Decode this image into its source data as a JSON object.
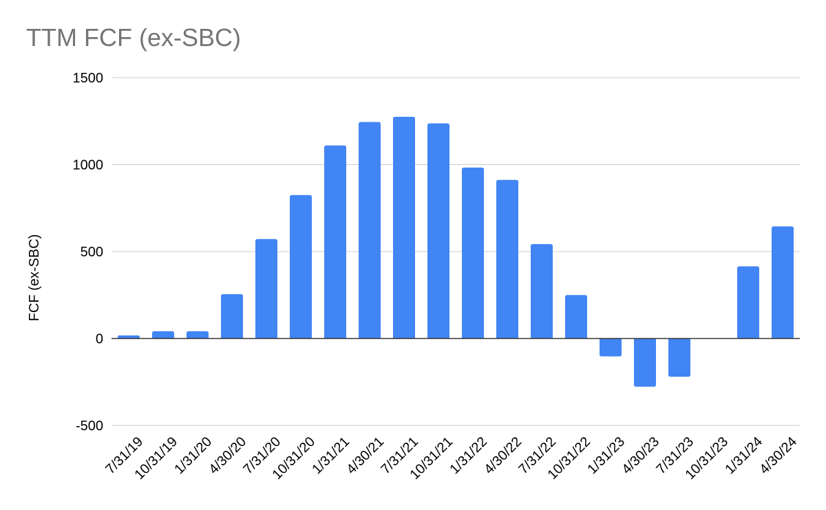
{
  "chart_data": {
    "type": "bar",
    "title": "TTM FCF (ex-SBC)",
    "ylabel": "FCF (ex-SBC)",
    "xlabel": "",
    "ylim": [
      -500,
      1500
    ],
    "yticks": [
      -500,
      0,
      500,
      1000,
      1500
    ],
    "grid": true,
    "legend": "none",
    "bar_color": "#4285f4",
    "categories": [
      "7/31/19",
      "10/31/19",
      "1/31/20",
      "4/30/20",
      "7/31/20",
      "10/31/20",
      "1/31/21",
      "4/30/21",
      "7/31/21",
      "10/31/21",
      "1/31/22",
      "4/30/22",
      "7/31/22",
      "10/31/22",
      "1/31/23",
      "4/30/23",
      "7/31/23",
      "10/31/23",
      "1/31/24",
      "4/30/24"
    ],
    "values": [
      18,
      42,
      42,
      255,
      572,
      825,
      1110,
      1245,
      1275,
      1237,
      983,
      912,
      543,
      250,
      -103,
      -277,
      -220,
      0,
      415,
      645
    ]
  }
}
